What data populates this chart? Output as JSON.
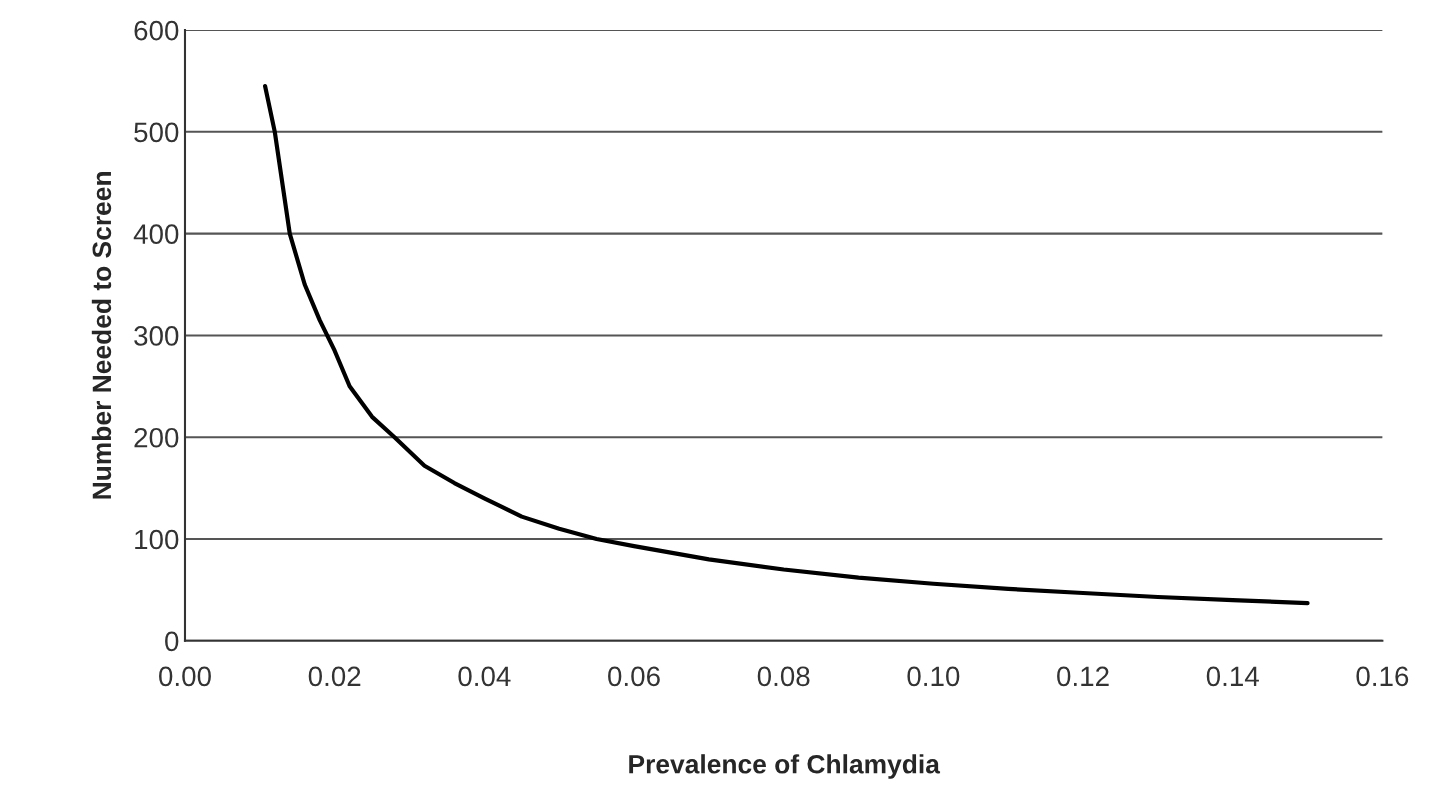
{
  "chart_data": {
    "type": "line",
    "xlabel": "Prevalence of Chlamydia",
    "ylabel": "Number Needed to Screen",
    "x": [
      0.0107,
      0.012,
      0.014,
      0.016,
      0.018,
      0.02,
      0.022,
      0.025,
      0.028,
      0.032,
      0.036,
      0.04,
      0.045,
      0.05,
      0.055,
      0.06,
      0.07,
      0.08,
      0.09,
      0.1,
      0.11,
      0.12,
      0.13,
      0.14,
      0.15
    ],
    "series": [
      {
        "color": "#000000",
        "values": [
          545,
          500,
          400,
          350,
          315,
          285,
          250,
          220,
          200,
          172,
          155,
          140,
          122,
          110,
          100,
          93,
          80,
          70,
          62,
          56,
          51,
          47,
          43,
          40,
          37
        ]
      }
    ],
    "xlim": [
      0,
      0.16
    ],
    "xticks": [
      {
        "value": 0,
        "label": "0.00"
      },
      {
        "value": 0.02,
        "label": "0.02"
      },
      {
        "value": 0.04,
        "label": "0.04"
      },
      {
        "value": 0.06,
        "label": "0.06"
      },
      {
        "value": 0.08,
        "label": "0.08"
      },
      {
        "value": 0.1,
        "label": "0.10"
      },
      {
        "value": 0.12,
        "label": "0.12"
      },
      {
        "value": 0.14,
        "label": "0.14"
      },
      {
        "value": 0.16,
        "label": "0.16"
      }
    ],
    "ylim": [
      0,
      600
    ],
    "yticks": [
      0,
      100,
      200,
      300,
      400,
      500,
      600
    ],
    "grid": "y",
    "line_style": "solid",
    "marker": "none"
  }
}
